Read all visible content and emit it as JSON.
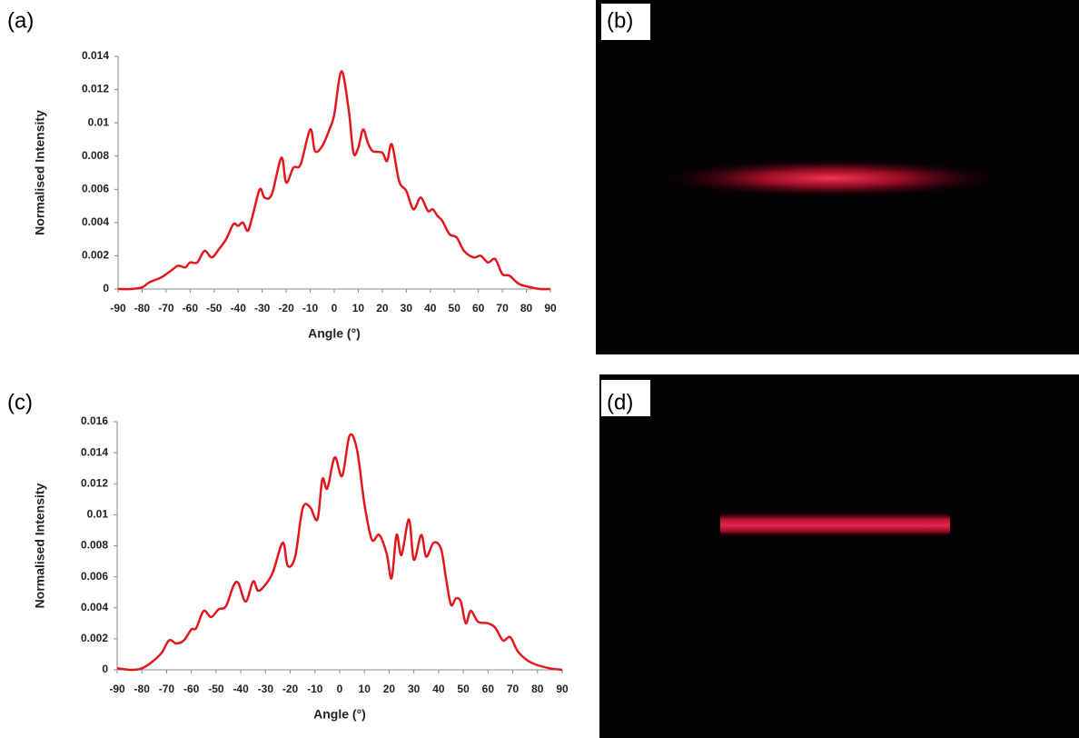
{
  "panel_labels": [
    "(a)",
    "(b)",
    "(c)",
    "(d)"
  ],
  "chart_data": [
    {
      "type": "line",
      "ylabel": "Normalised Intensity",
      "xlabel": "Angle (°)",
      "color": "#e3161d",
      "x": [
        -90,
        -85,
        -80,
        -77,
        -72,
        -68,
        -65,
        -62,
        -60,
        -57,
        -54,
        -51,
        -48,
        -45,
        -42,
        -40,
        -38,
        -36,
        -34,
        -31,
        -29,
        -26,
        -22,
        -20,
        -17,
        -14,
        -10,
        -8,
        -5,
        -2,
        0,
        3,
        6,
        8,
        10,
        12,
        14,
        16,
        20,
        22,
        24,
        27,
        30,
        33,
        36,
        39,
        41,
        43,
        45,
        48,
        51,
        54,
        58,
        61,
        64,
        67,
        70,
        73,
        77,
        82,
        86,
        90
      ],
      "values": [
        0,
        0,
        0.0001,
        0.0004,
        0.0007,
        0.0011,
        0.0014,
        0.0013,
        0.0016,
        0.0016,
        0.0023,
        0.0019,
        0.0024,
        0.003,
        0.0039,
        0.0038,
        0.004,
        0.0035,
        0.0044,
        0.006,
        0.0055,
        0.0057,
        0.0079,
        0.0064,
        0.0073,
        0.0075,
        0.0096,
        0.0083,
        0.0086,
        0.0096,
        0.0105,
        0.0131,
        0.0108,
        0.0082,
        0.0085,
        0.0096,
        0.0088,
        0.0083,
        0.0082,
        0.0077,
        0.0087,
        0.0065,
        0.0059,
        0.0048,
        0.0055,
        0.0047,
        0.0048,
        0.0044,
        0.0041,
        0.0033,
        0.0031,
        0.0023,
        0.0019,
        0.002,
        0.0016,
        0.0018,
        0.0009,
        0.0008,
        0.0003,
        0.0001,
        0,
        0
      ],
      "xlim": [
        -90,
        90
      ],
      "xticks": [
        -90,
        -80,
        -70,
        -60,
        -50,
        -40,
        -30,
        -20,
        -10,
        0,
        10,
        20,
        30,
        40,
        50,
        60,
        70,
        80,
        90
      ],
      "ylim": [
        0,
        0.014
      ],
      "yticks": [
        0,
        0.002,
        0.004,
        0.006,
        0.008,
        0.01,
        0.012,
        0.014
      ]
    },
    {
      "type": "line",
      "ylabel": "Normalised Intensity",
      "xlabel": "Angle (°)",
      "color": "#e3161d",
      "x": [
        -90,
        -84,
        -80,
        -76,
        -72,
        -69,
        -66,
        -63,
        -60,
        -58,
        -55,
        -52,
        -49,
        -46,
        -43,
        -41,
        -38,
        -35,
        -33,
        -30,
        -27,
        -23,
        -21,
        -18,
        -15,
        -12,
        -9,
        -7,
        -5,
        -2,
        1,
        4,
        7,
        10,
        13,
        16,
        19,
        21,
        23,
        25,
        28,
        30,
        33,
        35,
        38,
        41,
        43,
        45,
        47,
        49,
        51,
        53,
        56,
        60,
        63,
        66,
        69,
        72,
        76,
        80,
        85,
        90
      ],
      "values": [
        0.0001,
        0,
        0.0001,
        0.0005,
        0.0011,
        0.0019,
        0.0017,
        0.0019,
        0.0026,
        0.0027,
        0.0038,
        0.0034,
        0.0039,
        0.0041,
        0.0054,
        0.0056,
        0.0044,
        0.0057,
        0.0051,
        0.0055,
        0.0063,
        0.0082,
        0.0067,
        0.0073,
        0.0104,
        0.0105,
        0.0097,
        0.0123,
        0.0117,
        0.0137,
        0.0125,
        0.0151,
        0.0142,
        0.0107,
        0.0084,
        0.0087,
        0.0075,
        0.0059,
        0.0087,
        0.0074,
        0.0097,
        0.0071,
        0.0087,
        0.0073,
        0.0082,
        0.0078,
        0.0059,
        0.0042,
        0.0046,
        0.0044,
        0.003,
        0.0038,
        0.0031,
        0.003,
        0.0027,
        0.0019,
        0.0021,
        0.0012,
        0.0006,
        0.0003,
        0.0001,
        0
      ],
      "xlim": [
        -90,
        90
      ],
      "xticks": [
        -90,
        -80,
        -70,
        -60,
        -50,
        -40,
        -30,
        -20,
        -10,
        0,
        10,
        20,
        30,
        40,
        50,
        60,
        70,
        80,
        90
      ],
      "ylim": [
        0,
        0.016
      ],
      "yticks": [
        0,
        0.002,
        0.004,
        0.006,
        0.008,
        0.01,
        0.012,
        0.014,
        0.016
      ]
    }
  ]
}
